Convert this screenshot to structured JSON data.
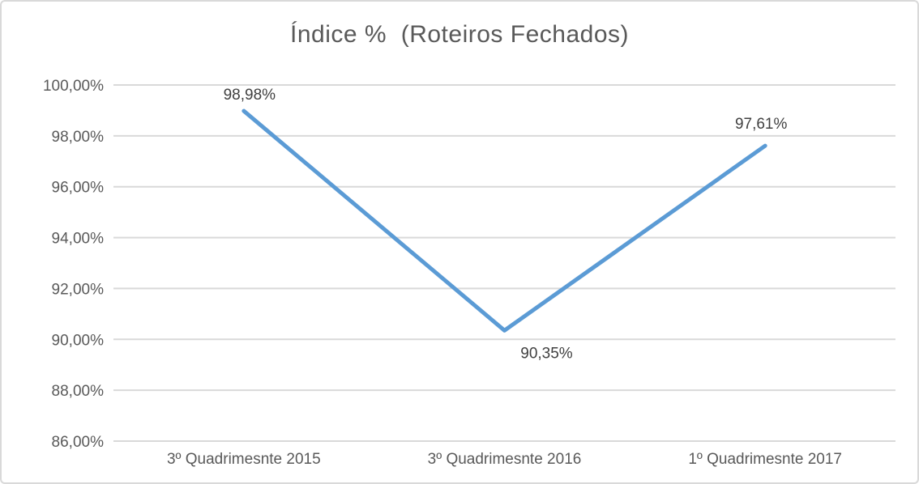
{
  "chart_data": {
    "type": "line",
    "title": "Índice %  (Roteiros Fechados)",
    "categories": [
      "3º Quadrimesnte 2015",
      "3º Quadrimesnte 2016",
      "1º Quadrimesnte 2017"
    ],
    "values": [
      98.98,
      90.35,
      97.61
    ],
    "value_labels": [
      "98,98%",
      "90,35%",
      "97,61%"
    ],
    "xlabel": "",
    "ylabel": "",
    "ylim": [
      86,
      100
    ],
    "ytick_step": 2,
    "yticks": [
      {
        "value": 100,
        "label": "100,00%"
      },
      {
        "value": 98,
        "label": "98,00%"
      },
      {
        "value": 96,
        "label": "96,00%"
      },
      {
        "value": 94,
        "label": "94,00%"
      },
      {
        "value": 92,
        "label": "92,00%"
      },
      {
        "value": 90,
        "label": "90,00%"
      },
      {
        "value": 88,
        "label": "88,00%"
      },
      {
        "value": 86,
        "label": "86,00%"
      }
    ],
    "grid": true,
    "legend": "none",
    "colors": {
      "line": "#5B9BD5",
      "gridline": "#D9D9D9",
      "axis_text": "#595959",
      "title_text": "#595959",
      "data_label_text": "#404040",
      "background": "#FFFFFF",
      "border": "#D9D9D9"
    }
  }
}
